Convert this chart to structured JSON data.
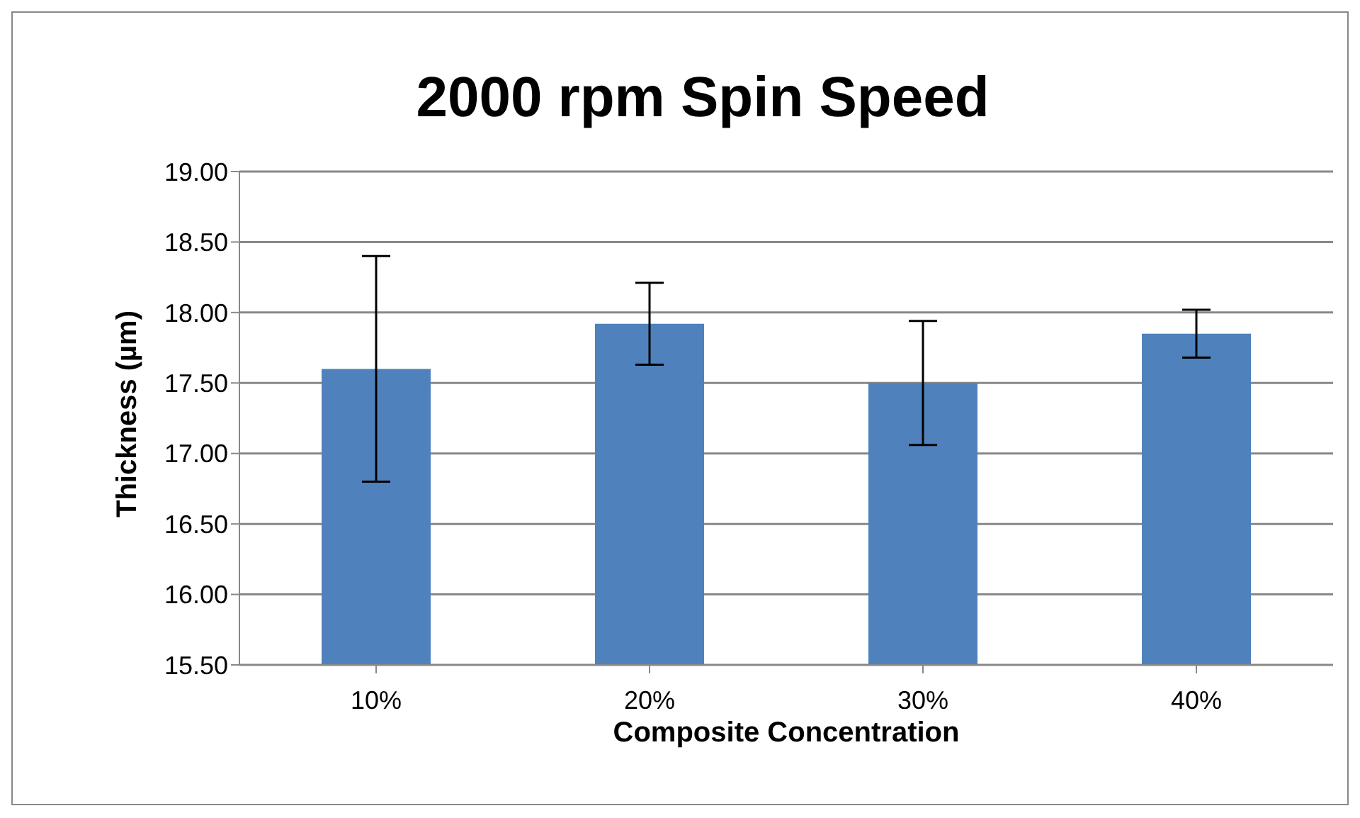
{
  "chart_data": {
    "type": "bar",
    "title": "2000 rpm Spin Speed",
    "xlabel": "Composite Concentration",
    "ylabel": "Thickness (µm)",
    "categories": [
      "10%",
      "20%",
      "30%",
      "40%"
    ],
    "values": [
      17.6,
      17.92,
      17.5,
      17.85
    ],
    "errors": [
      0.8,
      0.29,
      0.44,
      0.17
    ],
    "color": "#4f81bd",
    "ylim": [
      15.5,
      19
    ],
    "yticks": [
      {
        "value": 15.5,
        "label": "15.50"
      },
      {
        "value": 16,
        "label": "16.00"
      },
      {
        "value": 16.5,
        "label": "16.50"
      },
      {
        "value": 17,
        "label": "17.00"
      },
      {
        "value": 17.5,
        "label": "17.50"
      },
      {
        "value": 18,
        "label": "18.00"
      },
      {
        "value": 18.5,
        "label": "18.50"
      },
      {
        "value": 19,
        "label": "19.00"
      }
    ],
    "grid": "y",
    "legend": false
  }
}
